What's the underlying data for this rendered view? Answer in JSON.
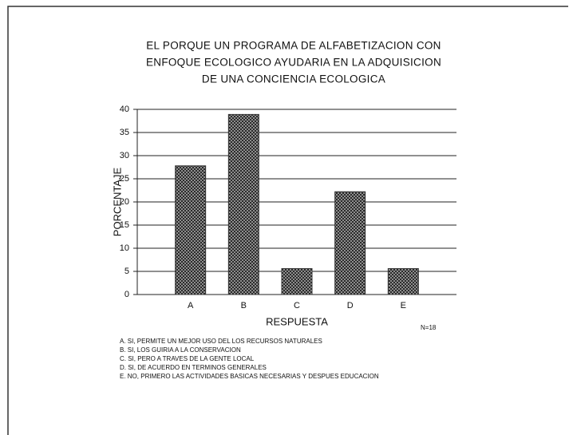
{
  "chart_data": {
    "type": "bar",
    "title": [
      "EL PORQUE UN PROGRAMA DE ALFABETIZACION CON",
      "ENFOQUE ECOLOGICO AYUDARIA EN LA ADQUISICION",
      "DE UNA CONCIENCIA ECOLOGICA"
    ],
    "x_label": "RESPUESTA",
    "y_label": "PORCENTAJE",
    "categories": [
      "A",
      "B",
      "C",
      "D",
      "E"
    ],
    "values": [
      27.8,
      38.9,
      5.6,
      22.2,
      5.6
    ],
    "color": "#333333",
    "ylim": [
      0,
      40
    ],
    "yticks": [
      0,
      5,
      10,
      15,
      20,
      25,
      30,
      35,
      40
    ],
    "grid": true,
    "annotation": "N=18",
    "notes": [
      "A.  SI,  PERMITE UN MEJOR USO DEL LOS RECURSOS NATURALES",
      "B.  SI,  LOS GUIRIA A LA CONSERVACION",
      "C.  SI,  PERO A TRAVES DE LA GENTE LOCAL",
      "D.  SI,  DE ACUERDO EN TERMINOS GENERALES",
      "E.  NO,  PRIMERO LAS ACTIVIDADES BASICAS NECESARIAS Y DESPUES EDUCACION"
    ]
  }
}
